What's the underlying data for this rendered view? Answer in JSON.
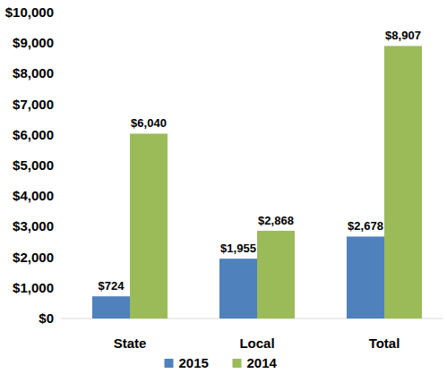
{
  "chart_data": {
    "type": "bar",
    "categories": [
      "State",
      "Local",
      "Total"
    ],
    "series": [
      {
        "name": "2015",
        "color": "#4f81bd",
        "values": [
          724,
          1955,
          2678
        ],
        "value_labels": [
          "$724",
          "$1,955",
          "$2,678"
        ]
      },
      {
        "name": "2014",
        "color": "#9bbb59",
        "values": [
          6040,
          2868,
          8907
        ],
        "value_labels": [
          "$6,040",
          "$2,868",
          "$8,907"
        ]
      }
    ],
    "ylim": [
      0,
      10000
    ],
    "yticks": [
      {
        "value": 0,
        "label": "$0"
      },
      {
        "value": 1000,
        "label": "$1,000"
      },
      {
        "value": 2000,
        "label": "$2,000"
      },
      {
        "value": 3000,
        "label": "$3,000"
      },
      {
        "value": 4000,
        "label": "$4,000"
      },
      {
        "value": 5000,
        "label": "$5,000"
      },
      {
        "value": 6000,
        "label": "$6,000"
      },
      {
        "value": 7000,
        "label": "$7,000"
      },
      {
        "value": 8000,
        "label": "$8,000"
      },
      {
        "value": 9000,
        "label": "$9,000"
      },
      {
        "value": 10000,
        "label": "$10,000"
      }
    ],
    "grid": false,
    "legend": "bottom",
    "data_labels": true
  }
}
